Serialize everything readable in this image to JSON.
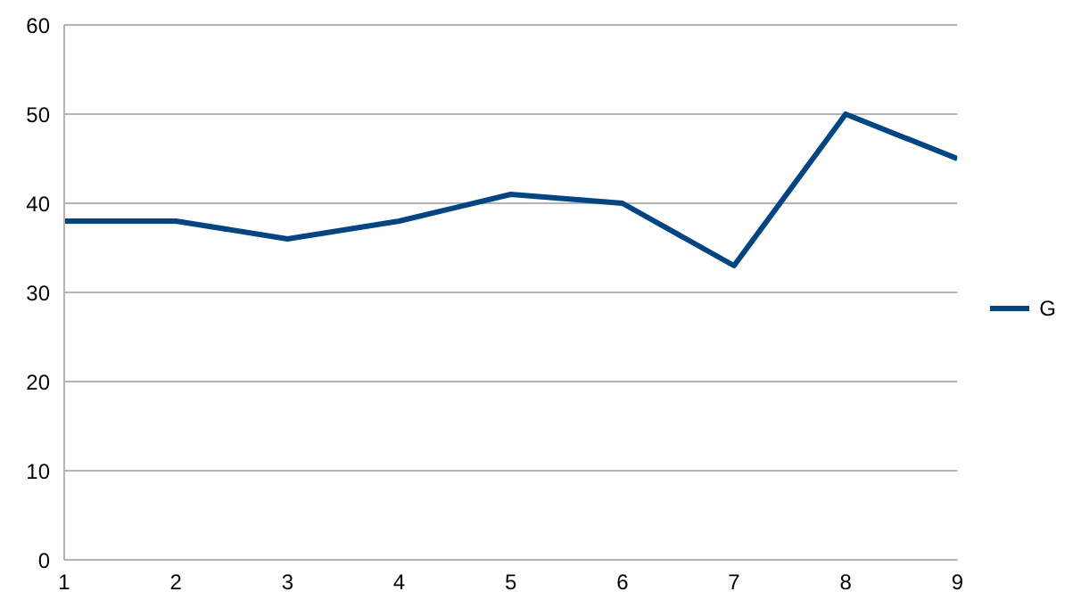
{
  "chart_data": {
    "type": "line",
    "x": [
      1,
      2,
      3,
      4,
      5,
      6,
      7,
      8,
      9
    ],
    "series": [
      {
        "name": "G",
        "color": "#004586",
        "values": [
          38,
          38,
          36,
          38,
          41,
          40,
          33,
          50,
          45
        ]
      }
    ],
    "xlim": [
      1,
      9
    ],
    "xticks": [
      1,
      2,
      3,
      4,
      5,
      6,
      7,
      8,
      9
    ],
    "ylim": [
      0,
      60
    ],
    "yticks": [
      0,
      10,
      20,
      30,
      40,
      50,
      60
    ],
    "grid": "y",
    "legend": "right",
    "marker": "none",
    "line_style": "solid"
  }
}
